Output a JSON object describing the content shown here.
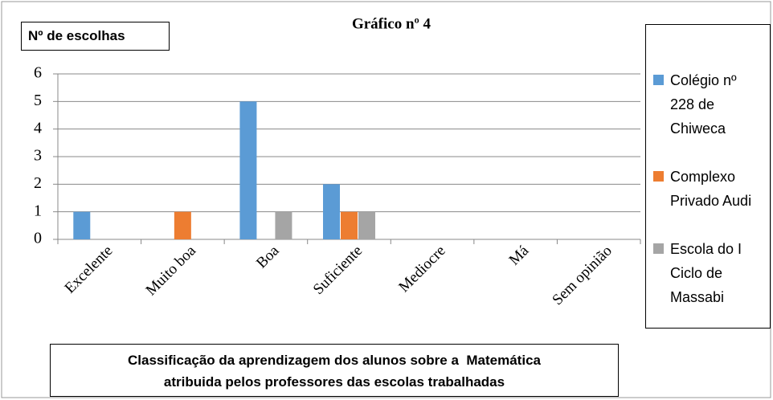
{
  "chart_data": {
    "type": "bar",
    "title": "Gráfico nº 4",
    "y_label": "Nº de escolhas",
    "x_label": [
      "Classificação da aprendizagem dos alunos sobre a  Matemática",
      "atribuida pelos professores das escolas trabalhadas"
    ],
    "categories": [
      "Excelente",
      "Muito boa",
      "Boa",
      "Suficiente",
      "Mediocre",
      "Má",
      "Sem opinião"
    ],
    "series": [
      {
        "name": "Colégio nº 228 de Chiweca",
        "color": "#5b9bd5",
        "values": [
          1,
          0,
          5,
          2,
          0,
          0,
          0
        ]
      },
      {
        "name": "Complexo Privado Audi",
        "color": "#ed7d31",
        "values": [
          0,
          1,
          0,
          1,
          0,
          0,
          0
        ]
      },
      {
        "name": "Escola do I Ciclo de Massabi",
        "color": "#a5a5a5",
        "values": [
          0,
          0,
          1,
          1,
          0,
          0,
          0
        ]
      }
    ],
    "ylim": [
      0,
      6
    ],
    "yticks": [
      0,
      1,
      2,
      3,
      4,
      5,
      6
    ],
    "grid": true
  }
}
